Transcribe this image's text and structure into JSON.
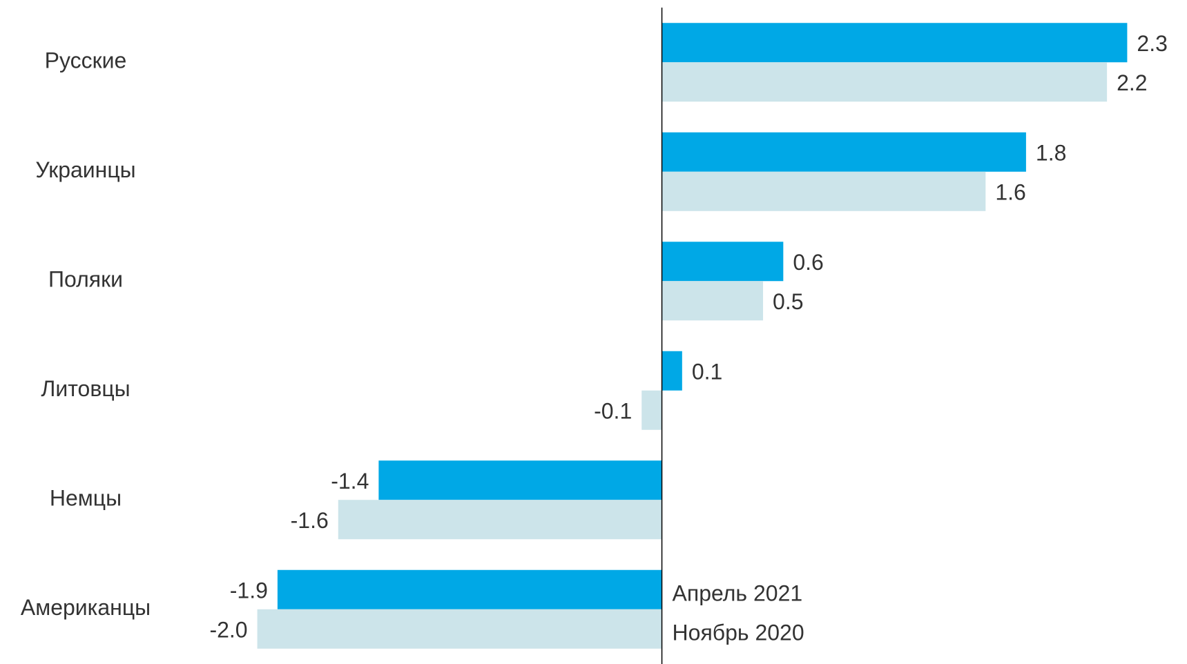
{
  "chart_data": {
    "type": "hbar",
    "categories": [
      "Русские",
      "Украинцы",
      "Поляки",
      "Литовцы",
      "Немцы",
      "Американцы"
    ],
    "series": [
      {
        "name": "Апрель 2021",
        "color": "#00a8e6",
        "values": [
          2.3,
          1.8,
          0.6,
          0.1,
          -1.4,
          -1.9
        ],
        "value_labels": [
          "2.3",
          "1.8",
          "0.6",
          "0.1",
          "-1.4",
          "-1.9"
        ]
      },
      {
        "name": "Ноябрь 2020",
        "color": "#cce4ea",
        "values": [
          2.2,
          1.6,
          0.5,
          -0.1,
          -1.6,
          -2.0
        ],
        "value_labels": [
          "2.2",
          "1.6",
          "0.5",
          "-0.1",
          "-1.6",
          "-2.0"
        ]
      }
    ],
    "xlim": [
      -3.2,
      2.5
    ]
  }
}
